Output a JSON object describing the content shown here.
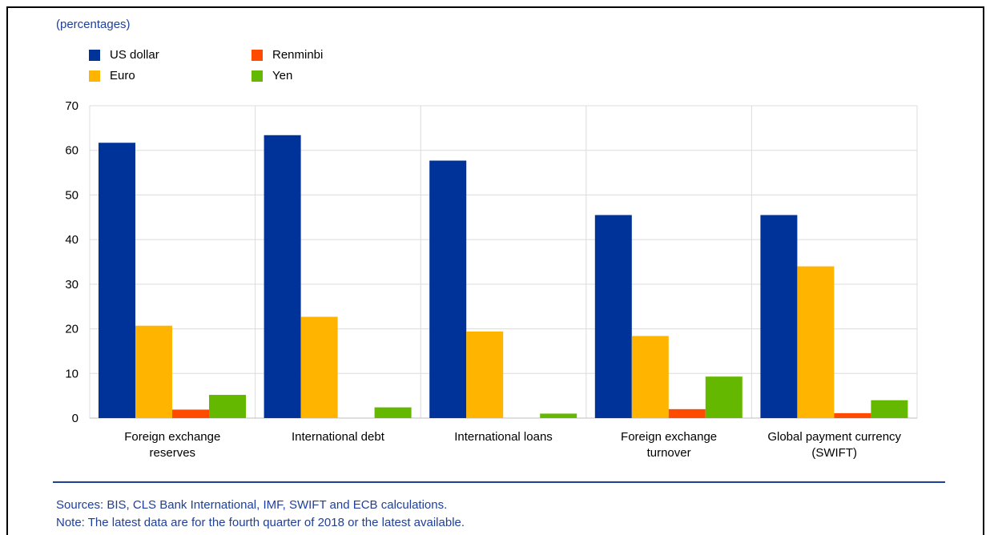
{
  "chart_data": {
    "type": "bar",
    "unit_note": "(percentages)",
    "categories": [
      [
        "Foreign exchange",
        "reserves"
      ],
      [
        "International debt"
      ],
      [
        "International loans"
      ],
      [
        "Foreign exchange",
        "turnover"
      ],
      [
        "Global payment currency",
        "(SWIFT)"
      ]
    ],
    "series": [
      {
        "name": "US dollar",
        "color": "#003399",
        "values": [
          61.7,
          63.4,
          57.7,
          45.5,
          45.5
        ]
      },
      {
        "name": "Euro",
        "color": "#ffb400",
        "values": [
          20.7,
          22.7,
          19.4,
          18.4,
          34.0
        ]
      },
      {
        "name": "Renminbi",
        "color": "#ff4b00",
        "values": [
          1.9,
          0,
          0,
          2.0,
          1.1
        ]
      },
      {
        "name": "Yen",
        "color": "#65b800",
        "values": [
          5.2,
          2.4,
          1.0,
          9.3,
          4.0
        ]
      }
    ],
    "ylim": [
      0,
      70
    ],
    "yticks": [
      0,
      10,
      20,
      30,
      40,
      50,
      60,
      70
    ],
    "grid": true,
    "legend_position": "top-left"
  },
  "footer": {
    "sources": "Sources: BIS, CLS Bank International, IMF, SWIFT and ECB calculations.",
    "note": "Note: The latest data are for the fourth quarter of 2018 or the latest available."
  }
}
